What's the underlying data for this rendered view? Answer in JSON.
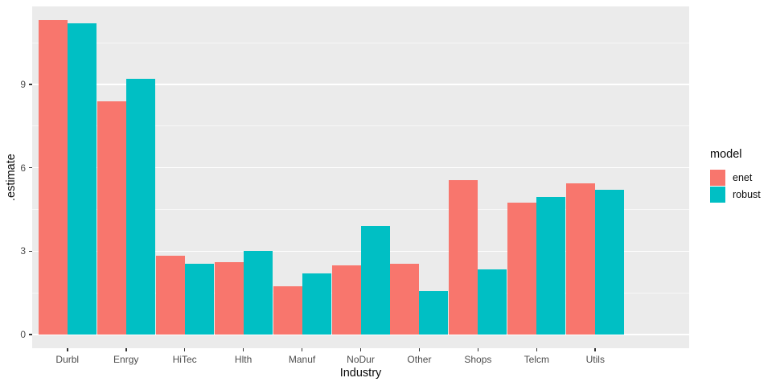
{
  "chart_data": {
    "type": "bar",
    "title": "",
    "xlabel": "Industry",
    "ylabel": ".estimate",
    "legend_title": "model",
    "legend_position": "right",
    "grid": true,
    "panel_bg": "#EBEBEB",
    "grid_color": "#FFFFFF",
    "categories": [
      "Durbl",
      "Enrgy",
      "HiTec",
      "Hlth",
      "Manuf",
      "NoDur",
      "Other",
      "Shops",
      "Telcm",
      "Utils"
    ],
    "series": [
      {
        "name": "enet",
        "color": "#F8766D",
        "values": [
          11.3,
          8.4,
          2.85,
          2.6,
          1.75,
          2.5,
          2.55,
          5.55,
          4.75,
          5.45
        ]
      },
      {
        "name": "robust",
        "color": "#00BFC4",
        "values": [
          11.2,
          9.2,
          2.55,
          3.0,
          2.2,
          3.9,
          1.55,
          2.35,
          4.95,
          5.2
        ]
      }
    ],
    "y_ticks": [
      0,
      3,
      6,
      9
    ],
    "y_minor_ticks": [
      1.5,
      4.5,
      7.5,
      10.5
    ],
    "ylim": [
      -0.55,
      11.85
    ]
  }
}
